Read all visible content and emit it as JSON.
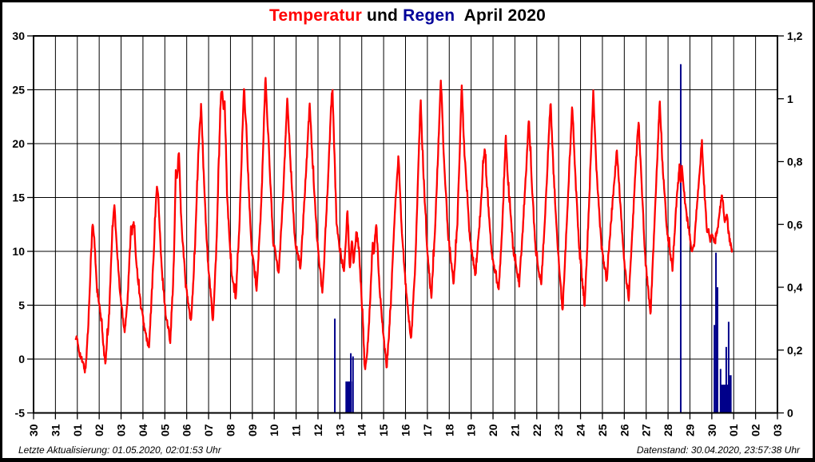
{
  "title": {
    "part_temperatur": "Temperatur",
    "part_und": " und ",
    "part_regen": "Regen",
    "part_period": "  April 2020"
  },
  "footer": {
    "last_update": "Letzte Aktualisierung: 01.05.2020, 02:01:53 Uhr",
    "data_state": "Datenstand: 30.04.2020, 23:57:38 Uhr"
  },
  "colors": {
    "temperature_line": "#ff0000",
    "rain_bar": "#00008b",
    "grid": "#000000",
    "frame": "#000000",
    "background": "#ffffff",
    "title_temperatur": "#ff0000",
    "title_regen": "#000099"
  },
  "chart_data": {
    "type": "line+bar",
    "title": "Temperatur und Regen April 2020",
    "grid": true,
    "x_axis": {
      "unit": "day of month",
      "span_days": 34,
      "tick_labels": [
        "30",
        "31",
        "01",
        "02",
        "03",
        "04",
        "05",
        "06",
        "07",
        "08",
        "09",
        "10",
        "11",
        "12",
        "13",
        "14",
        "15",
        "16",
        "17",
        "18",
        "19",
        "20",
        "21",
        "22",
        "23",
        "24",
        "25",
        "26",
        "27",
        "28",
        "29",
        "30",
        "01",
        "02",
        "03"
      ]
    },
    "left_axis": {
      "name": "Temperatur",
      "min": -5,
      "max": 30,
      "step": 5,
      "tick_labels": [
        "30",
        "25",
        "20",
        "15",
        "10",
        "5",
        "0",
        "-5"
      ]
    },
    "right_axis": {
      "name": "Regen",
      "min": 0,
      "max": 1.2,
      "step": 0.2,
      "tick_labels": [
        "1,2",
        "1",
        "0,8",
        "0,6",
        "0,4",
        "0,2",
        "0"
      ]
    },
    "temperature_series": {
      "name": "Temperatur",
      "x_unit": "days_since_30_march",
      "points_day_temp": [
        [
          1.93,
          2.2
        ],
        [
          2.0,
          1.6
        ],
        [
          2.15,
          0.2
        ],
        [
          2.37,
          -1.1
        ],
        [
          2.5,
          3.0
        ],
        [
          2.62,
          9.5
        ],
        [
          2.7,
          12.6
        ],
        [
          2.78,
          11.0
        ],
        [
          2.9,
          6.5
        ],
        [
          3.1,
          3.5
        ],
        [
          3.28,
          -0.6
        ],
        [
          3.45,
          4.0
        ],
        [
          3.6,
          12.0
        ],
        [
          3.69,
          14.6
        ],
        [
          3.8,
          10.5
        ],
        [
          3.95,
          6.2
        ],
        [
          4.16,
          2.6
        ],
        [
          4.3,
          5.5
        ],
        [
          4.45,
          12.3
        ],
        [
          4.5,
          11.8
        ],
        [
          4.58,
          12.7
        ],
        [
          4.7,
          9.0
        ],
        [
          4.9,
          5.0
        ],
        [
          5.1,
          2.5
        ],
        [
          5.28,
          1.0
        ],
        [
          5.45,
          8.0
        ],
        [
          5.63,
          16.2
        ],
        [
          5.7,
          15.0
        ],
        [
          5.85,
          8.5
        ],
        [
          6.05,
          4.0
        ],
        [
          6.25,
          1.8
        ],
        [
          6.4,
          8.0
        ],
        [
          6.5,
          17.3
        ],
        [
          6.56,
          16.8
        ],
        [
          6.64,
          19.4
        ],
        [
          6.75,
          13.0
        ],
        [
          6.95,
          7.0
        ],
        [
          7.19,
          3.3
        ],
        [
          7.35,
          9.0
        ],
        [
          7.55,
          20.0
        ],
        [
          7.66,
          23.6
        ],
        [
          7.78,
          17.0
        ],
        [
          7.95,
          9.5
        ],
        [
          8.2,
          3.5
        ],
        [
          8.35,
          10.0
        ],
        [
          8.55,
          24.0
        ],
        [
          8.6,
          24.9
        ],
        [
          8.68,
          23.4
        ],
        [
          8.73,
          24.1
        ],
        [
          8.85,
          15.0
        ],
        [
          9.05,
          8.0
        ],
        [
          9.24,
          5.5
        ],
        [
          9.4,
          12.0
        ],
        [
          9.62,
          25.3
        ],
        [
          9.75,
          20.0
        ],
        [
          9.95,
          10.5
        ],
        [
          10.2,
          6.5
        ],
        [
          10.4,
          14.0
        ],
        [
          10.6,
          26.2
        ],
        [
          10.72,
          21.0
        ],
        [
          10.95,
          11.0
        ],
        [
          11.2,
          8.0
        ],
        [
          11.4,
          15.0
        ],
        [
          11.6,
          24.3
        ],
        [
          11.75,
          18.0
        ],
        [
          11.95,
          11.0
        ],
        [
          12.2,
          8.5
        ],
        [
          12.4,
          15.5
        ],
        [
          12.62,
          23.7
        ],
        [
          12.75,
          18.5
        ],
        [
          12.95,
          11.5
        ],
        [
          13.2,
          6.0
        ],
        [
          13.42,
          15.0
        ],
        [
          13.62,
          24.3
        ],
        [
          13.66,
          25.1
        ],
        [
          13.72,
          21.0
        ],
        [
          13.85,
          12.5
        ],
        [
          14.05,
          9.5
        ],
        [
          14.2,
          8.2
        ],
        [
          14.35,
          14.0
        ],
        [
          14.45,
          8.3
        ],
        [
          14.55,
          11.2
        ],
        [
          14.63,
          9.0
        ],
        [
          14.75,
          11.9
        ],
        [
          14.87,
          10.3
        ],
        [
          15.0,
          5.5
        ],
        [
          15.15,
          -1.3
        ],
        [
          15.3,
          2.0
        ],
        [
          15.5,
          10.6
        ],
        [
          15.56,
          9.8
        ],
        [
          15.66,
          12.8
        ],
        [
          15.8,
          7.0
        ],
        [
          16.0,
          2.0
        ],
        [
          16.14,
          -0.7
        ],
        [
          16.3,
          4.0
        ],
        [
          16.55,
          15.0
        ],
        [
          16.68,
          18.9
        ],
        [
          16.8,
          13.0
        ],
        [
          17.0,
          7.0
        ],
        [
          17.26,
          1.6
        ],
        [
          17.45,
          9.0
        ],
        [
          17.69,
          24.3
        ],
        [
          17.8,
          18.0
        ],
        [
          18.0,
          10.0
        ],
        [
          18.18,
          5.7
        ],
        [
          18.35,
          12.0
        ],
        [
          18.62,
          26.1
        ],
        [
          18.75,
          19.0
        ],
        [
          18.95,
          11.5
        ],
        [
          19.2,
          7.0
        ],
        [
          19.38,
          13.0
        ],
        [
          19.57,
          25.4
        ],
        [
          19.7,
          19.0
        ],
        [
          19.95,
          11.0
        ],
        [
          20.2,
          7.8
        ],
        [
          20.4,
          13.0
        ],
        [
          20.62,
          19.9
        ],
        [
          20.75,
          15.0
        ],
        [
          20.95,
          9.5
        ],
        [
          21.26,
          6.4
        ],
        [
          21.42,
          12.0
        ],
        [
          21.58,
          20.7
        ],
        [
          21.7,
          16.0
        ],
        [
          21.95,
          9.5
        ],
        [
          22.2,
          7.0
        ],
        [
          22.42,
          14.0
        ],
        [
          22.64,
          22.4
        ],
        [
          22.78,
          16.0
        ],
        [
          22.95,
          10.0
        ],
        [
          23.2,
          6.9
        ],
        [
          23.4,
          14.0
        ],
        [
          23.63,
          24.3
        ],
        [
          23.75,
          18.0
        ],
        [
          23.95,
          10.5
        ],
        [
          24.18,
          4.4
        ],
        [
          24.38,
          13.0
        ],
        [
          24.62,
          23.6
        ],
        [
          24.75,
          17.5
        ],
        [
          24.95,
          10.0
        ],
        [
          25.19,
          4.8
        ],
        [
          25.38,
          14.0
        ],
        [
          25.58,
          24.8
        ],
        [
          25.72,
          18.0
        ],
        [
          25.95,
          10.5
        ],
        [
          26.2,
          7.3
        ],
        [
          26.42,
          13.5
        ],
        [
          26.66,
          19.5
        ],
        [
          26.8,
          15.0
        ],
        [
          27.0,
          9.0
        ],
        [
          27.2,
          5.3
        ],
        [
          27.42,
          14.0
        ],
        [
          27.65,
          22.3
        ],
        [
          27.78,
          17.0
        ],
        [
          27.95,
          9.5
        ],
        [
          28.2,
          4.2
        ],
        [
          28.4,
          13.5
        ],
        [
          28.62,
          23.9
        ],
        [
          28.75,
          18.0
        ],
        [
          28.95,
          12.0
        ],
        [
          29.2,
          8.3
        ],
        [
          29.35,
          13.5
        ],
        [
          29.52,
          18.0
        ],
        [
          29.58,
          16.2
        ],
        [
          29.63,
          17.4
        ],
        [
          29.68,
          16.9
        ],
        [
          29.8,
          14.0
        ],
        [
          29.95,
          12.0
        ],
        [
          30.1,
          10.0
        ],
        [
          30.2,
          10.8
        ],
        [
          30.35,
          15.0
        ],
        [
          30.55,
          20.2
        ],
        [
          30.68,
          15.0
        ],
        [
          30.78,
          11.5
        ],
        [
          30.85,
          12.3
        ],
        [
          30.92,
          11.0
        ],
        [
          31.05,
          11.6
        ],
        [
          31.15,
          10.8
        ],
        [
          31.25,
          12.0
        ],
        [
          31.47,
          15.4
        ],
        [
          31.58,
          12.8
        ],
        [
          31.68,
          13.6
        ],
        [
          31.78,
          11.5
        ],
        [
          31.92,
          10.2
        ]
      ]
    },
    "rain_bars": {
      "name": "Regen",
      "x_unit": "days_since_30_march",
      "bars": [
        {
          "day": 13.77,
          "value": 0.3,
          "width": 2
        },
        {
          "day": 14.4,
          "value": 0.1,
          "width": 8
        },
        {
          "day": 14.5,
          "value": 0.19,
          "width": 2
        },
        {
          "day": 14.6,
          "value": 0.18,
          "width": 2
        },
        {
          "day": 29.58,
          "value": 1.11,
          "width": 2
        },
        {
          "day": 31.12,
          "value": 0.28,
          "width": 2
        },
        {
          "day": 31.19,
          "value": 0.51,
          "width": 2
        },
        {
          "day": 31.26,
          "value": 0.4,
          "width": 2
        },
        {
          "day": 31.4,
          "value": 0.14,
          "width": 2
        },
        {
          "day": 31.62,
          "value": 0.09,
          "width": 11
        },
        {
          "day": 31.66,
          "value": 0.21,
          "width": 2
        },
        {
          "day": 31.77,
          "value": 0.29,
          "width": 2
        },
        {
          "day": 31.85,
          "value": 0.12,
          "width": 3
        }
      ]
    }
  }
}
